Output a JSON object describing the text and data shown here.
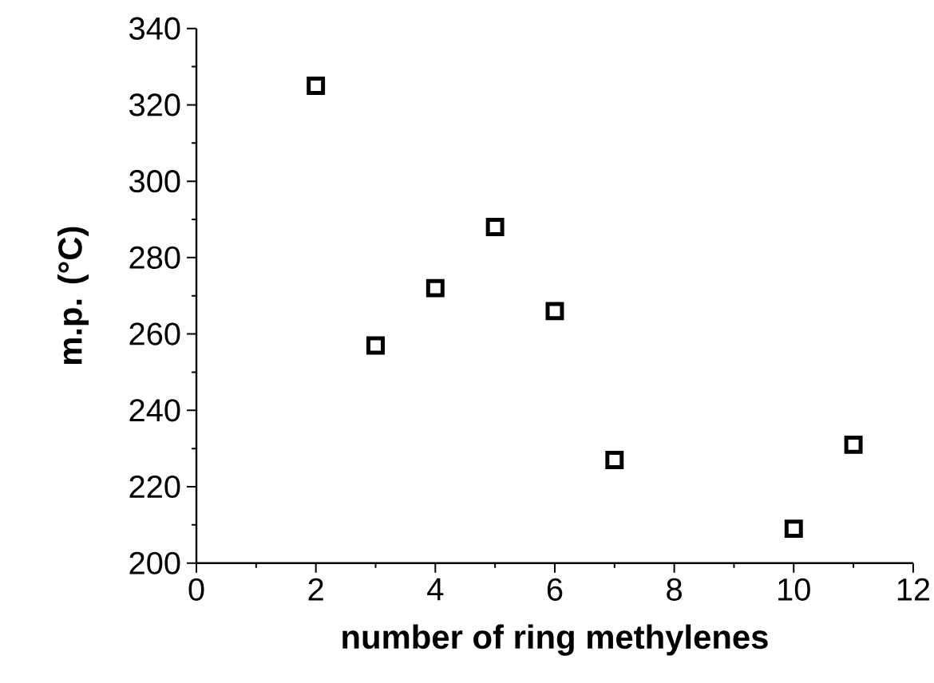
{
  "chart_data": {
    "type": "scatter",
    "xlabel": "number of ring methylenes",
    "ylabel": "m.p. (°C)",
    "x": [
      2,
      3,
      4,
      5,
      6,
      7,
      10,
      11
    ],
    "values": [
      325,
      257,
      272,
      288,
      266,
      227,
      209,
      231
    ],
    "color": "#000000",
    "marker": "square",
    "xlim": [
      0,
      12
    ],
    "xticks": [
      0,
      2,
      4,
      6,
      8,
      10,
      12
    ],
    "ylim": [
      200,
      340
    ],
    "yticks": [
      200,
      220,
      240,
      260,
      280,
      300,
      320,
      340
    ],
    "grid": false
  }
}
